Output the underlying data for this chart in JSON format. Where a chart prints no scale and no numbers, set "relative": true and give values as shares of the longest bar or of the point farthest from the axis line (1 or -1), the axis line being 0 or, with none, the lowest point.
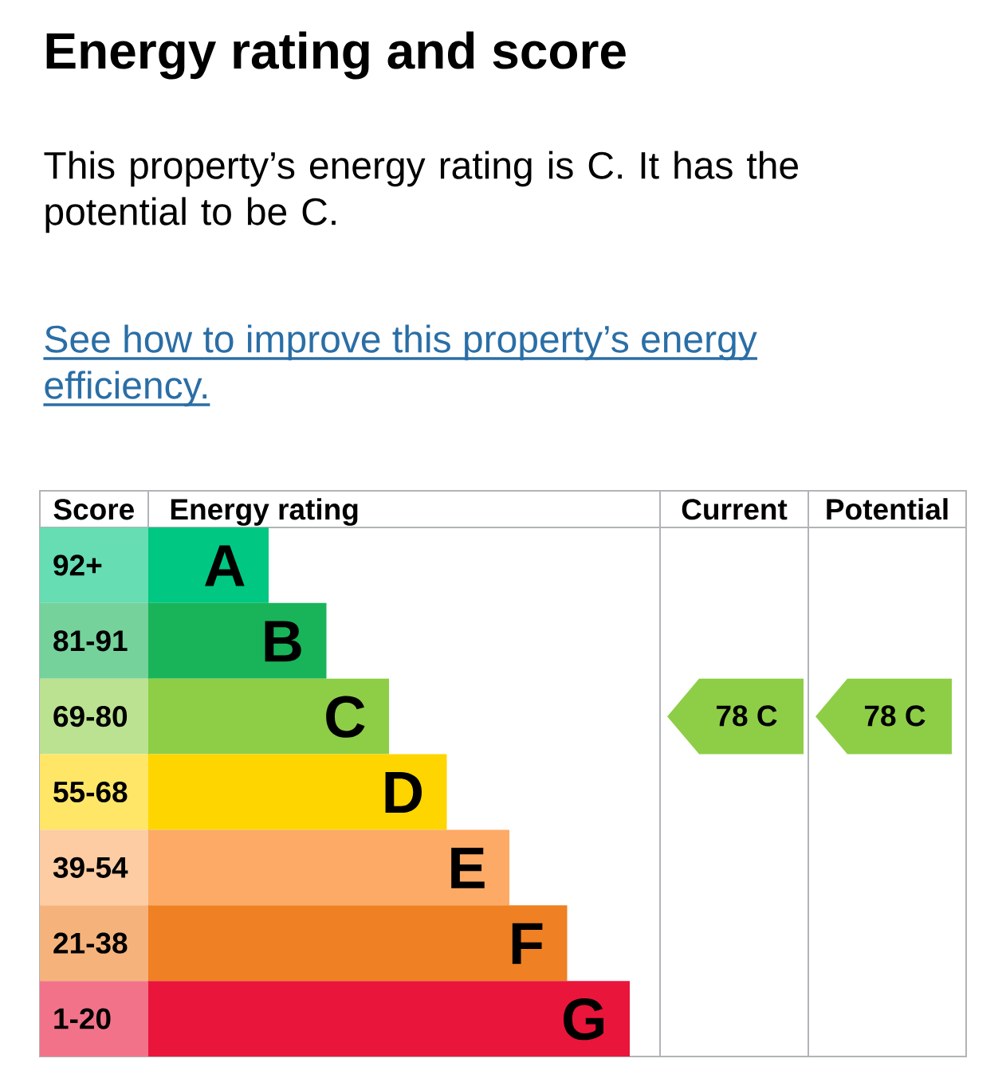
{
  "chart_data": {
    "type": "bar",
    "orientation": "horizontal",
    "relative": true,
    "title": "Energy rating and score",
    "subtitle": "This property’s energy rating is C. It has the potential to be C.",
    "ylabel": "Score",
    "xlabel": "Energy rating",
    "categories": [
      "92+",
      "81-91",
      "69-80",
      "55-68",
      "39-54",
      "21-38",
      "1-20"
    ],
    "values": [
      0.25,
      0.37,
      0.5,
      0.62,
      0.75,
      0.87,
      1
    ],
    "colors": [
      "#00c781",
      "#19b459",
      "#8dce46",
      "#ffd500",
      "#fcaa65",
      "#ef8023",
      "#e9153b"
    ],
    "annotations": [
      "Current",
      "Potential",
      {
        "text": "A",
        "x": 0.25,
        "y": "92+"
      },
      {
        "text": "B",
        "x": 0.37,
        "y": "81-91"
      },
      {
        "text": "C",
        "x": 0.5,
        "y": "69-80"
      },
      {
        "text": "D",
        "x": 0.62,
        "y": "55-68"
      },
      {
        "text": "E",
        "x": 0.75,
        "y": "39-54"
      },
      {
        "text": "F",
        "x": 0.87,
        "y": "21-38"
      },
      {
        "text": "G",
        "x": 1,
        "y": "1-20"
      },
      "78 C",
      "78 C",
      "See how to improve this property’s energy efficiency."
    ]
  }
}
